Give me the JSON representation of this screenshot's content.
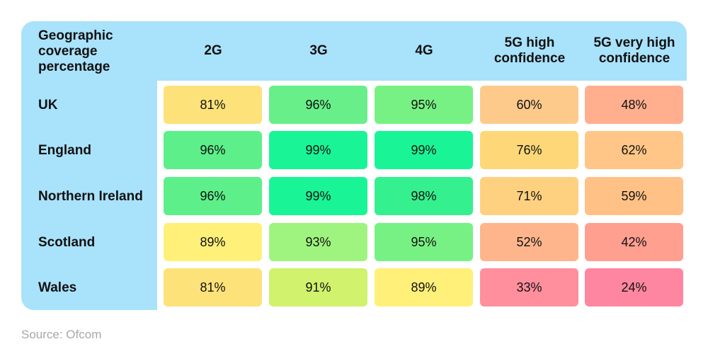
{
  "chart_data": {
    "type": "table",
    "corner_label": "Geographic coverage percentage",
    "columns": [
      "2G",
      "3G",
      "4G",
      "5G high confidence",
      "5G very high confidence"
    ],
    "rows": [
      {
        "label": "UK",
        "values": [
          "81%",
          "96%",
          "95%",
          "60%",
          "48%"
        ]
      },
      {
        "label": "England",
        "values": [
          "96%",
          "99%",
          "99%",
          "76%",
          "62%"
        ]
      },
      {
        "label": "Northern Ireland",
        "values": [
          "96%",
          "99%",
          "98%",
          "71%",
          "59%"
        ]
      },
      {
        "label": "Scotland",
        "values": [
          "89%",
          "93%",
          "95%",
          "52%",
          "42%"
        ]
      },
      {
        "label": "Wales",
        "values": [
          "81%",
          "91%",
          "89%",
          "33%",
          "24%"
        ]
      }
    ],
    "cell_colors": [
      [
        "#fde27a",
        "#68ef8a",
        "#78f184",
        "#feca8c",
        "#ffaf8e"
      ],
      [
        "#5def8a",
        "#19f596",
        "#19f596",
        "#fed878",
        "#ffc687"
      ],
      [
        "#5def8a",
        "#19f596",
        "#35f08e",
        "#fed180",
        "#ffc186"
      ],
      [
        "#fff07a",
        "#9ff47f",
        "#78f184",
        "#ffb58c",
        "#ff9f90"
      ],
      [
        "#fde27a",
        "#d0f26c",
        "#fff07a",
        "#ff8f9c",
        "#ff86a0"
      ]
    ],
    "header_background": "#a9e2fb",
    "source": "Source: Ofcom"
  }
}
